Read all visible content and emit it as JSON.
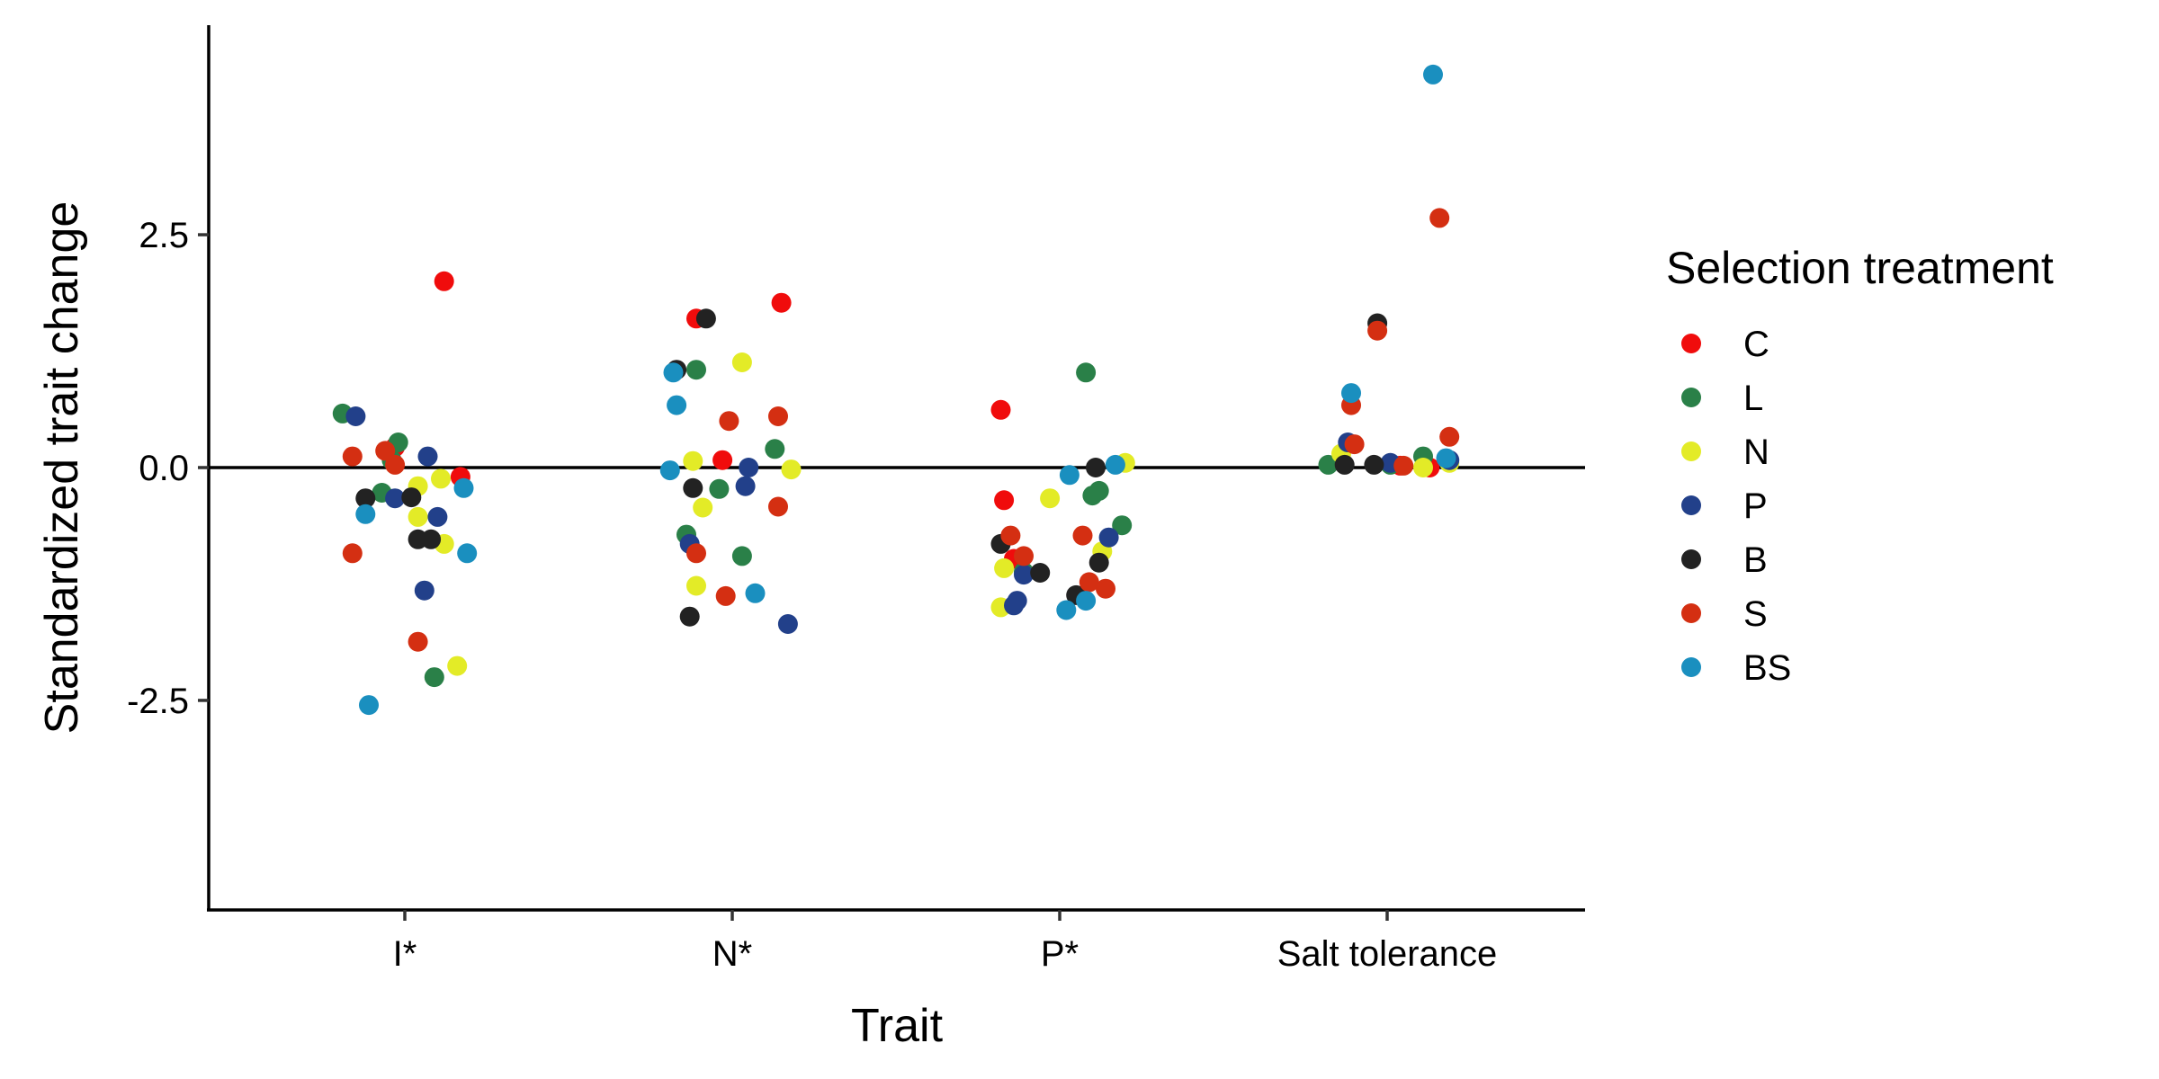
{
  "chart_data": {
    "type": "scatter",
    "xlabel": "Trait",
    "ylabel": "Standardized trait change",
    "categories": [
      "I*",
      "N*",
      "P*",
      "Salt tolerance"
    ],
    "ylim": [
      -4.75,
      4.75
    ],
    "yticks": [
      "2.5",
      "0.0",
      "-2.5"
    ],
    "ytick_values": [
      2.5,
      0.0,
      -2.5
    ],
    "reference_line_y": 0,
    "legend": {
      "title": "Selection treatment",
      "position": "right"
    },
    "grid": false,
    "series": [
      {
        "name": "C",
        "color": "#f00c0c",
        "points": [
          {
            "category": "I*",
            "jitter": 0.12,
            "y": 2.0
          },
          {
            "category": "I*",
            "jitter": 0.17,
            "y": -0.1
          },
          {
            "category": "I*",
            "jitter": -0.03,
            "y": 0.22
          },
          {
            "category": "N*",
            "jitter": -0.11,
            "y": 1.6
          },
          {
            "category": "N*",
            "jitter": 0.15,
            "y": 1.77
          },
          {
            "category": "N*",
            "jitter": -0.03,
            "y": 0.08
          },
          {
            "category": "P*",
            "jitter": -0.18,
            "y": 0.62
          },
          {
            "category": "P*",
            "jitter": -0.17,
            "y": -0.35
          },
          {
            "category": "P*",
            "jitter": -0.14,
            "y": -0.98
          },
          {
            "category": "Salt tolerance",
            "jitter": 0.04,
            "y": 0.02
          },
          {
            "category": "Salt tolerance",
            "jitter": 0.13,
            "y": 0.0
          }
        ]
      },
      {
        "name": "L",
        "color": "#2a8048",
        "points": [
          {
            "category": "I*",
            "jitter": -0.19,
            "y": 0.58
          },
          {
            "category": "I*",
            "jitter": -0.02,
            "y": 0.27
          },
          {
            "category": "I*",
            "jitter": -0.04,
            "y": 0.08
          },
          {
            "category": "I*",
            "jitter": -0.07,
            "y": -0.27
          },
          {
            "category": "I*",
            "jitter": 0.09,
            "y": -2.25
          },
          {
            "category": "N*",
            "jitter": -0.11,
            "y": 1.05
          },
          {
            "category": "N*",
            "jitter": 0.13,
            "y": 0.2
          },
          {
            "category": "N*",
            "jitter": -0.04,
            "y": -0.23
          },
          {
            "category": "N*",
            "jitter": -0.14,
            "y": -0.72
          },
          {
            "category": "N*",
            "jitter": 0.03,
            "y": -0.95
          },
          {
            "category": "P*",
            "jitter": 0.08,
            "y": 1.02
          },
          {
            "category": "P*",
            "jitter": 0.12,
            "y": -0.25
          },
          {
            "category": "P*",
            "jitter": 0.1,
            "y": -0.3
          },
          {
            "category": "P*",
            "jitter": 0.19,
            "y": -0.62
          },
          {
            "category": "P*",
            "jitter": -0.11,
            "y": -1.12
          },
          {
            "category": "Salt tolerance",
            "jitter": -0.18,
            "y": 0.03
          },
          {
            "category": "Salt tolerance",
            "jitter": 0.11,
            "y": 0.12
          },
          {
            "category": "Salt tolerance",
            "jitter": 0.01,
            "y": 0.03
          }
        ]
      },
      {
        "name": "N",
        "color": "#e3eb27",
        "points": [
          {
            "category": "I*",
            "jitter": 0.11,
            "y": -0.12
          },
          {
            "category": "I*",
            "jitter": 0.04,
            "y": -0.2
          },
          {
            "category": "I*",
            "jitter": 0.04,
            "y": -0.53
          },
          {
            "category": "I*",
            "jitter": 0.12,
            "y": -0.82
          },
          {
            "category": "I*",
            "jitter": 0.16,
            "y": -2.13
          },
          {
            "category": "N*",
            "jitter": 0.03,
            "y": 1.13
          },
          {
            "category": "N*",
            "jitter": -0.12,
            "y": 0.07
          },
          {
            "category": "N*",
            "jitter": 0.18,
            "y": -0.02
          },
          {
            "category": "N*",
            "jitter": -0.09,
            "y": -0.43
          },
          {
            "category": "N*",
            "jitter": -0.11,
            "y": -1.27
          },
          {
            "category": "P*",
            "jitter": -0.03,
            "y": -0.33
          },
          {
            "category": "P*",
            "jitter": -0.17,
            "y": -1.08
          },
          {
            "category": "P*",
            "jitter": 0.13,
            "y": -0.9
          },
          {
            "category": "P*",
            "jitter": -0.18,
            "y": -1.5
          },
          {
            "category": "P*",
            "jitter": 0.2,
            "y": 0.05
          },
          {
            "category": "Salt tolerance",
            "jitter": -0.14,
            "y": 0.15
          },
          {
            "category": "Salt tolerance",
            "jitter": 0.11,
            "y": 0.0
          },
          {
            "category": "Salt tolerance",
            "jitter": 0.19,
            "y": 0.05
          }
        ]
      },
      {
        "name": "P",
        "color": "#22408a",
        "points": [
          {
            "category": "I*",
            "jitter": -0.15,
            "y": 0.55
          },
          {
            "category": "I*",
            "jitter": 0.07,
            "y": 0.12
          },
          {
            "category": "I*",
            "jitter": -0.03,
            "y": -0.33
          },
          {
            "category": "I*",
            "jitter": 0.1,
            "y": -0.53
          },
          {
            "category": "I*",
            "jitter": 0.06,
            "y": -1.32
          },
          {
            "category": "N*",
            "jitter": 0.05,
            "y": 0.0
          },
          {
            "category": "N*",
            "jitter": 0.04,
            "y": -0.2
          },
          {
            "category": "N*",
            "jitter": -0.13,
            "y": -0.82
          },
          {
            "category": "N*",
            "jitter": 0.17,
            "y": -1.68
          },
          {
            "category": "P*",
            "jitter": 0.15,
            "y": -0.75
          },
          {
            "category": "P*",
            "jitter": -0.11,
            "y": -1.15
          },
          {
            "category": "P*",
            "jitter": -0.13,
            "y": -1.43
          },
          {
            "category": "P*",
            "jitter": -0.14,
            "y": -1.48
          },
          {
            "category": "Salt tolerance",
            "jitter": -0.12,
            "y": 0.27
          },
          {
            "category": "Salt tolerance",
            "jitter": 0.01,
            "y": 0.05
          },
          {
            "category": "Salt tolerance",
            "jitter": 0.19,
            "y": 0.08
          }
        ]
      },
      {
        "name": "B",
        "color": "#222222",
        "points": [
          {
            "category": "I*",
            "jitter": -0.12,
            "y": -0.33
          },
          {
            "category": "I*",
            "jitter": 0.02,
            "y": -0.32
          },
          {
            "category": "I*",
            "jitter": 0.04,
            "y": -0.77
          },
          {
            "category": "I*",
            "jitter": 0.08,
            "y": -0.77
          },
          {
            "category": "N*",
            "jitter": -0.17,
            "y": 1.05
          },
          {
            "category": "N*",
            "jitter": -0.08,
            "y": 1.6
          },
          {
            "category": "N*",
            "jitter": -0.12,
            "y": -0.22
          },
          {
            "category": "N*",
            "jitter": -0.13,
            "y": -1.6
          },
          {
            "category": "P*",
            "jitter": 0.11,
            "y": 0.0
          },
          {
            "category": "P*",
            "jitter": -0.06,
            "y": -1.13
          },
          {
            "category": "P*",
            "jitter": 0.05,
            "y": -1.37
          },
          {
            "category": "P*",
            "jitter": 0.12,
            "y": -1.02
          },
          {
            "category": "P*",
            "jitter": -0.18,
            "y": -0.82
          },
          {
            "category": "Salt tolerance",
            "jitter": -0.03,
            "y": 1.55
          },
          {
            "category": "Salt tolerance",
            "jitter": -0.13,
            "y": 0.03
          },
          {
            "category": "Salt tolerance",
            "jitter": -0.04,
            "y": 0.03
          }
        ]
      },
      {
        "name": "S",
        "color": "#d42f12",
        "points": [
          {
            "category": "I*",
            "jitter": -0.16,
            "y": 0.12
          },
          {
            "category": "I*",
            "jitter": -0.06,
            "y": 0.18
          },
          {
            "category": "I*",
            "jitter": -0.03,
            "y": 0.03
          },
          {
            "category": "I*",
            "jitter": -0.16,
            "y": -0.92
          },
          {
            "category": "I*",
            "jitter": 0.04,
            "y": -1.87
          },
          {
            "category": "N*",
            "jitter": -0.01,
            "y": 0.5
          },
          {
            "category": "N*",
            "jitter": 0.14,
            "y": 0.55
          },
          {
            "category": "N*",
            "jitter": 0.14,
            "y": -0.42
          },
          {
            "category": "N*",
            "jitter": -0.11,
            "y": -0.92
          },
          {
            "category": "N*",
            "jitter": -0.02,
            "y": -1.38
          },
          {
            "category": "P*",
            "jitter": -0.15,
            "y": -0.73
          },
          {
            "category": "P*",
            "jitter": -0.11,
            "y": -0.95
          },
          {
            "category": "P*",
            "jitter": 0.07,
            "y": -0.73
          },
          {
            "category": "P*",
            "jitter": 0.09,
            "y": -1.23
          },
          {
            "category": "P*",
            "jitter": 0.14,
            "y": -1.3
          },
          {
            "category": "Salt tolerance",
            "jitter": -0.11,
            "y": 0.67
          },
          {
            "category": "Salt tolerance",
            "jitter": -0.03,
            "y": 1.47
          },
          {
            "category": "Salt tolerance",
            "jitter": 0.16,
            "y": 2.68
          },
          {
            "category": "Salt tolerance",
            "jitter": -0.1,
            "y": 0.25
          },
          {
            "category": "Salt tolerance",
            "jitter": 0.19,
            "y": 0.33
          },
          {
            "category": "Salt tolerance",
            "jitter": 0.05,
            "y": 0.02
          }
        ]
      },
      {
        "name": "BS",
        "color": "#1a8fbf",
        "points": [
          {
            "category": "I*",
            "jitter": -0.12,
            "y": -0.5
          },
          {
            "category": "I*",
            "jitter": -0.11,
            "y": -2.55
          },
          {
            "category": "I*",
            "jitter": 0.18,
            "y": -0.22
          },
          {
            "category": "I*",
            "jitter": 0.19,
            "y": -0.92
          },
          {
            "category": "N*",
            "jitter": -0.18,
            "y": 1.02
          },
          {
            "category": "N*",
            "jitter": -0.17,
            "y": 0.67
          },
          {
            "category": "N*",
            "jitter": -0.19,
            "y": -0.03
          },
          {
            "category": "N*",
            "jitter": 0.07,
            "y": -1.35
          },
          {
            "category": "P*",
            "jitter": 0.03,
            "y": -0.08
          },
          {
            "category": "P*",
            "jitter": 0.02,
            "y": -1.53
          },
          {
            "category": "P*",
            "jitter": 0.08,
            "y": -1.43
          },
          {
            "category": "P*",
            "jitter": 0.17,
            "y": 0.03
          },
          {
            "category": "Salt tolerance",
            "jitter": -0.11,
            "y": 0.8
          },
          {
            "category": "Salt tolerance",
            "jitter": 0.14,
            "y": 4.22
          },
          {
            "category": "Salt tolerance",
            "jitter": 0.18,
            "y": 0.1
          }
        ]
      }
    ]
  }
}
